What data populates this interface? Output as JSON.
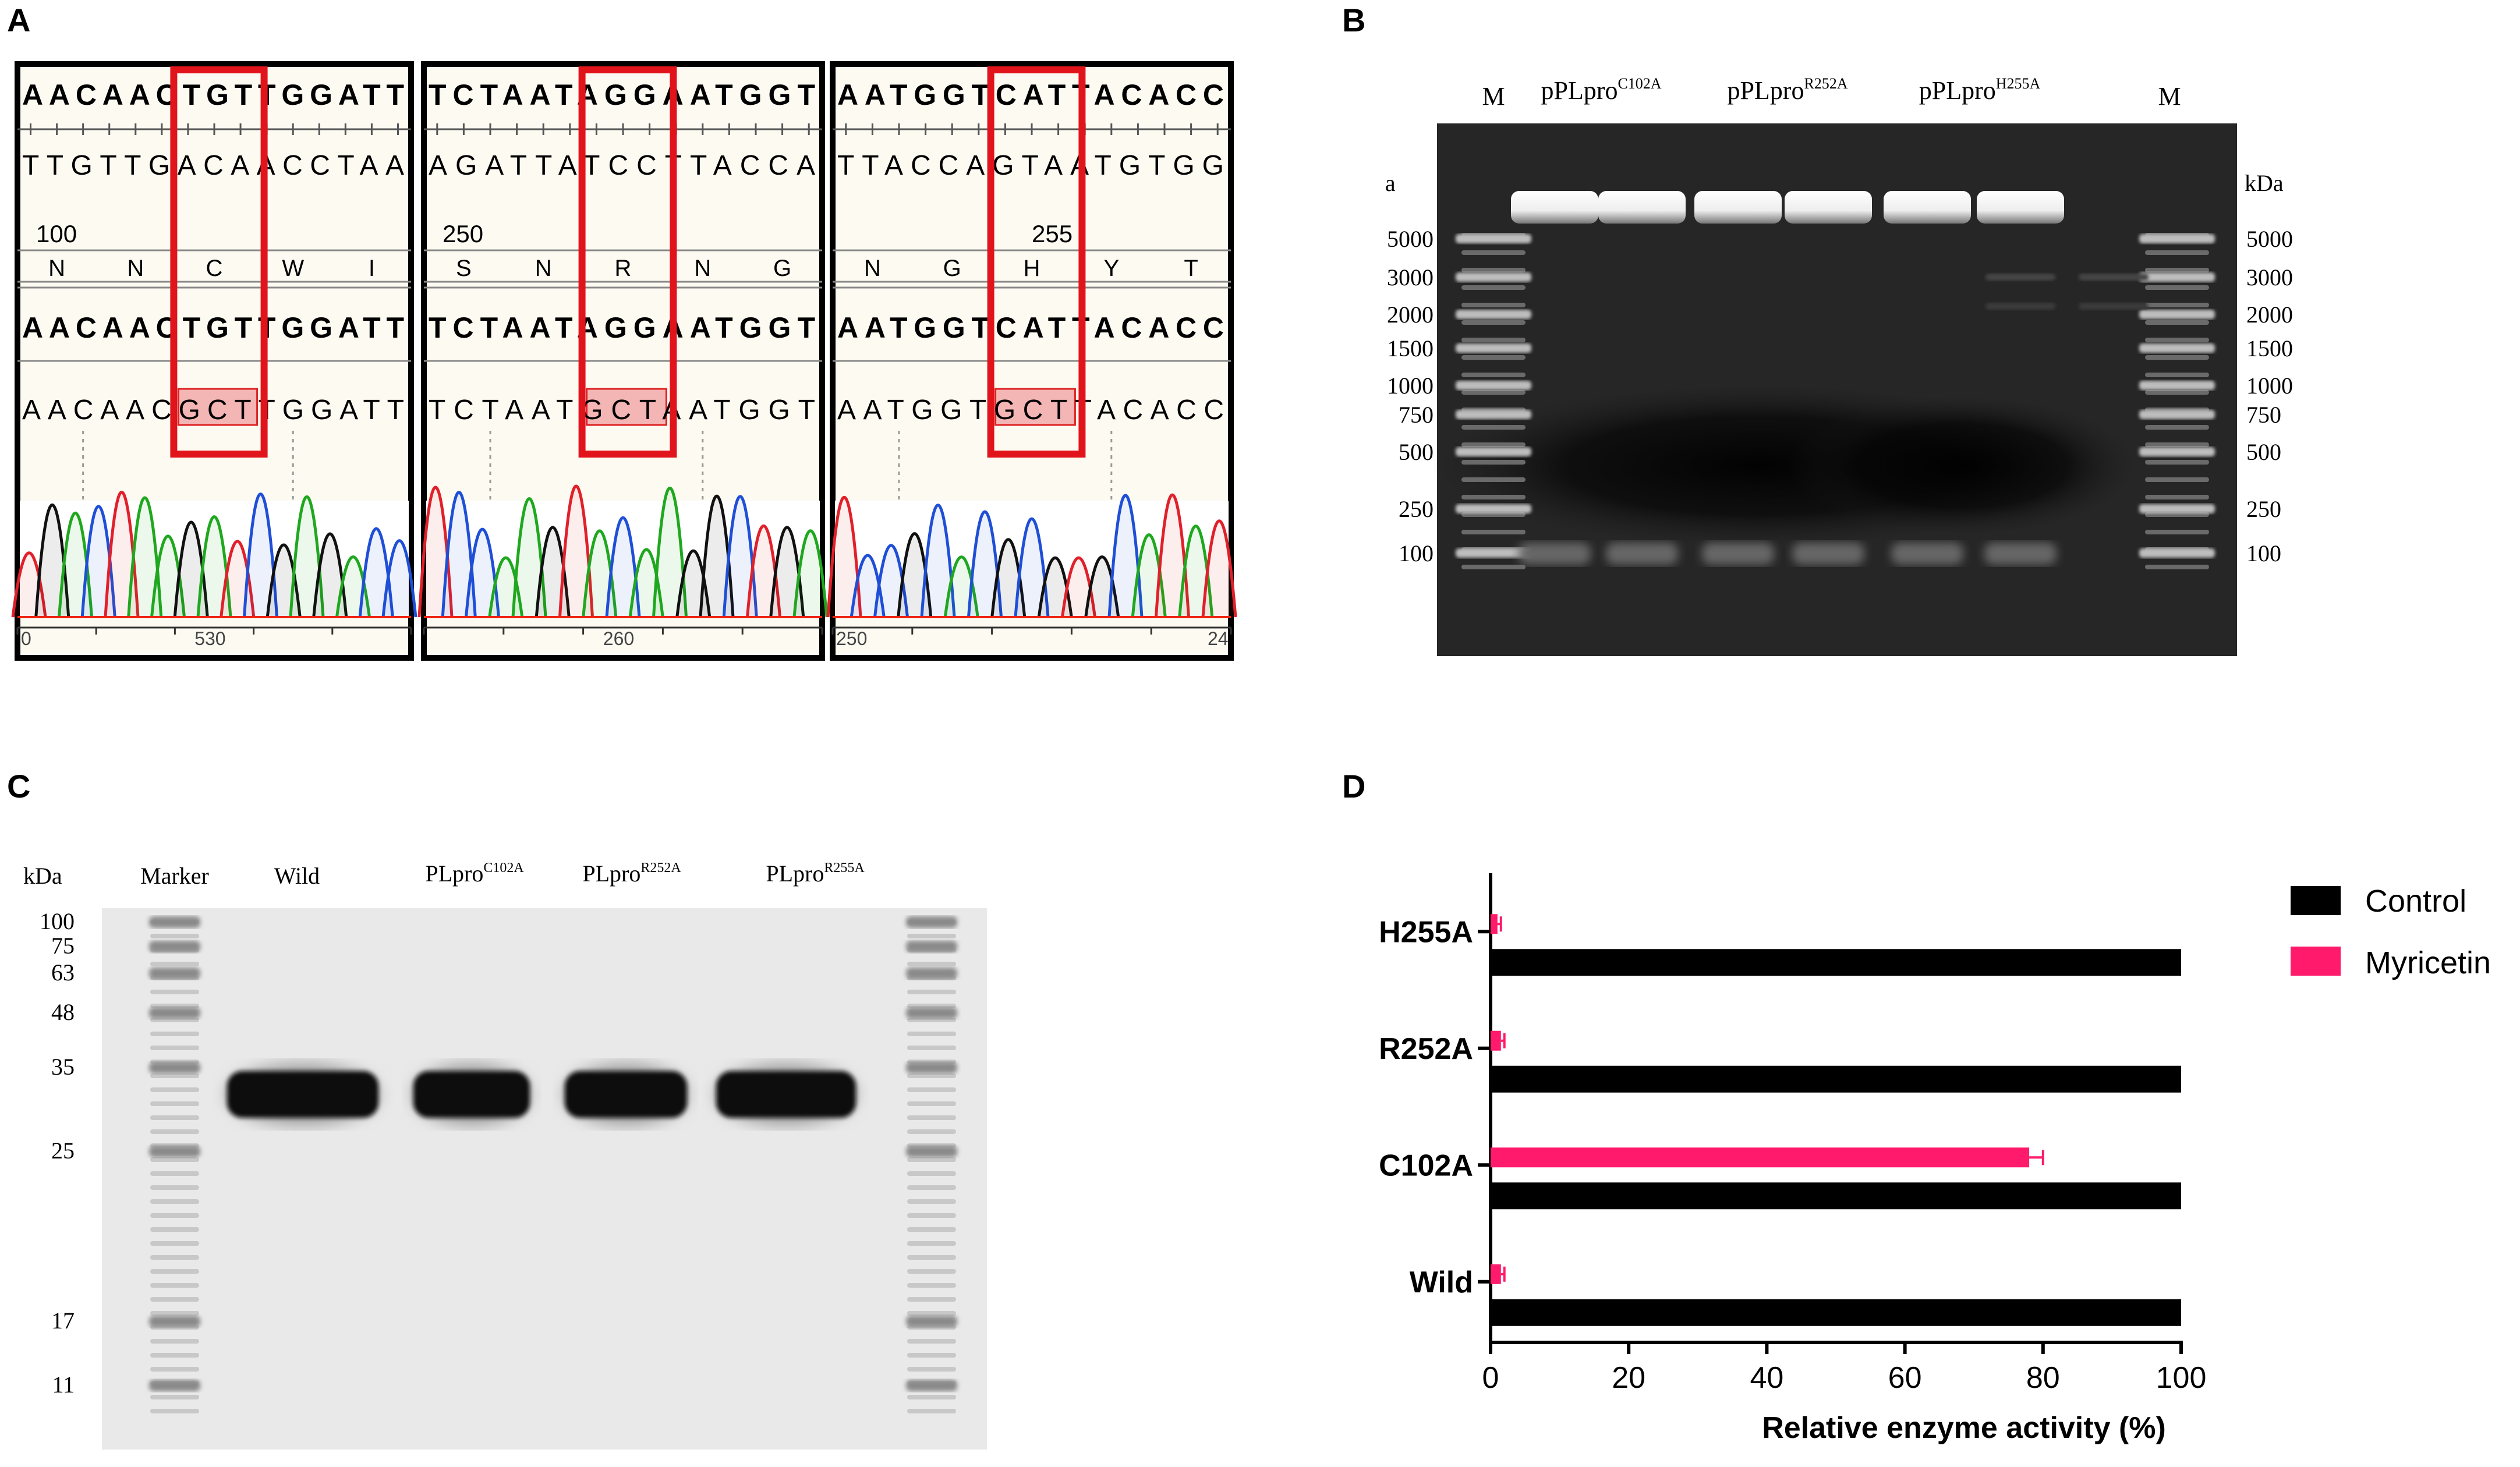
{
  "panels": {
    "a": "A",
    "b": "B",
    "c": "C",
    "d": "D"
  },
  "panel_a": {
    "boxes": [
      {
        "ref1": "AACAACTGTTGGATT",
        "comp": "TTGTTGACAACCTAA",
        "pos": "100",
        "aa": [
          "N",
          "N",
          "C",
          "W",
          "I"
        ],
        "ref2": "AACAACTGTTGGATT",
        "mut_pre": "AACAAC",
        "mut_hl": "GC",
        "mut_post": "TTGGATT",
        "axis_left": "0",
        "axis_mid": "530",
        "axis_right": ""
      },
      {
        "ref1": "TCTAATAGGAATGGT",
        "comp": "AGATTATCCTTACCA",
        "pos": "250",
        "aa": [
          "S",
          "N",
          "R",
          "N",
          "G"
        ],
        "ref2": "TCTAATAGGAATGGT",
        "mut_pre": "TCTAAT",
        "mut_hl": "GCT",
        "mut_post": "AATGGT",
        "axis_left": "",
        "axis_mid": "260",
        "axis_right": ""
      },
      {
        "ref1": "AATGGTCATTACACC",
        "comp": "TTACCAGTAATGTGG",
        "pos": "255",
        "aa": [
          "N",
          "G",
          "H",
          "Y",
          "T"
        ],
        "ref2": "AATGGTCATTACACC",
        "mut_pre": "AATGGT",
        "mut_hl": "GC",
        "mut_post": "TTACACC",
        "axis_left": "250",
        "axis_mid": "",
        "axis_right": "24"
      }
    ]
  },
  "panel_b": {
    "lane_labels": [
      "M",
      "pPLpro",
      "C102A",
      "pPLpro",
      "R252A",
      "pPLpro",
      "H255A",
      "M"
    ],
    "unit": "kDa",
    "markers": [
      "5000",
      "3000",
      "2000",
      "1500",
      "1000",
      "750",
      "500",
      "250",
      "100"
    ]
  },
  "panel_c": {
    "unit": "kDa",
    "lane_labels": [
      "Marker",
      "Wild",
      "PLpro",
      "C102A",
      "PLpro",
      "R252A",
      "PLpro",
      "R255A"
    ],
    "markers": [
      "100",
      "75",
      "63",
      "48",
      "35",
      "25",
      "17",
      "11"
    ]
  },
  "chart_data": {
    "type": "bar",
    "orientation": "horizontal",
    "categories": [
      "H255A",
      "R252A",
      "C102A",
      "Wild"
    ],
    "series": [
      {
        "name": "Control",
        "values": [
          100,
          100,
          100,
          100
        ],
        "color": "#000000"
      },
      {
        "name": "Myricetin",
        "values": [
          1.0,
          1.5,
          78,
          1.5
        ],
        "errors": [
          0.5,
          0.5,
          2,
          0.5
        ],
        "color": "#ff1a6b"
      }
    ],
    "xlabel": "Relative enzyme activity (%)",
    "ylabel": "",
    "xlim": [
      0,
      100
    ],
    "xticks": [
      "0",
      "20",
      "40",
      "60",
      "80",
      "100"
    ],
    "legend_position": "top-right",
    "grid": false
  }
}
